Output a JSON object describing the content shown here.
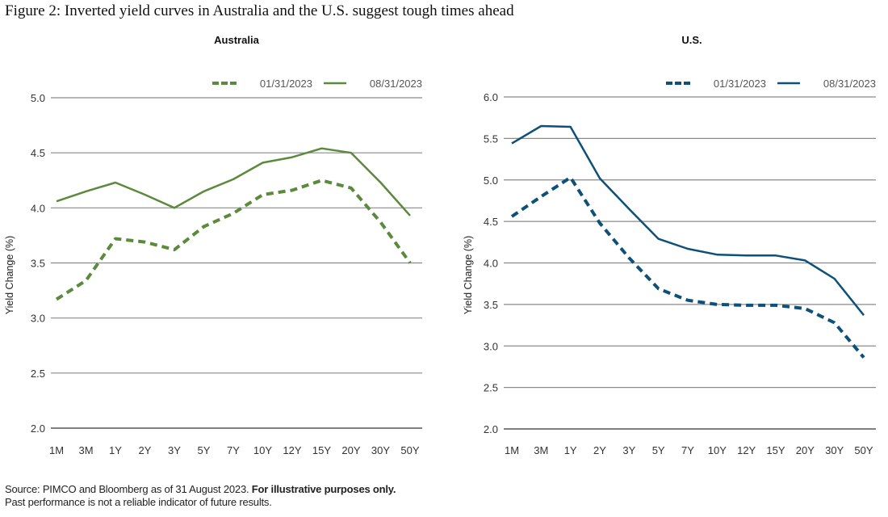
{
  "title": "Figure 2: Inverted yield curves in Australia and the U.S. suggest tough times ahead",
  "footer": {
    "source": "Source: PIMCO and Bloomberg as of 31 August 2023. ",
    "source_bold": "For illustrative purposes only.",
    "disclaimer": "Past performance is not a reliable indicator of future results."
  },
  "chart_data": [
    {
      "type": "line",
      "title": "Australia",
      "xlabel": "",
      "ylabel": "Yield Change (%)",
      "ylim": [
        2.0,
        5.0
      ],
      "yticks": [
        "2.0",
        "2.5",
        "3.0",
        "3.5",
        "4.0",
        "4.5",
        "5.0"
      ],
      "grid": true,
      "legend": "top-right",
      "color": "#5b8a3c",
      "categories": [
        "1M",
        "3M",
        "1Y",
        "2Y",
        "3Y",
        "5Y",
        "7Y",
        "10Y",
        "12Y",
        "15Y",
        "20Y",
        "30Y",
        "50Y"
      ],
      "series": [
        {
          "name": "01/31/2023",
          "style": "dashed",
          "values": [
            3.17,
            3.34,
            3.72,
            3.69,
            3.62,
            3.83,
            3.95,
            4.12,
            4.16,
            4.25,
            4.18,
            3.87,
            3.5
          ]
        },
        {
          "name": "08/31/2023",
          "style": "solid",
          "values": [
            4.06,
            4.15,
            4.23,
            4.12,
            4.0,
            4.15,
            4.26,
            4.41,
            4.46,
            4.54,
            4.5,
            4.23,
            3.93
          ]
        }
      ]
    },
    {
      "type": "line",
      "title": "U.S.",
      "xlabel": "",
      "ylabel": "Yield Change (%)",
      "ylim": [
        2.0,
        6.0
      ],
      "yticks": [
        "2.0",
        "2.5",
        "3.0",
        "3.5",
        "4.0",
        "4.5",
        "5.0",
        "5.5",
        "6.0"
      ],
      "grid": true,
      "legend": "top-right",
      "color": "#0d5079",
      "categories": [
        "1M",
        "3M",
        "1Y",
        "2Y",
        "3Y",
        "5Y",
        "7Y",
        "10Y",
        "12Y",
        "15Y",
        "20Y",
        "30Y",
        "50Y"
      ],
      "series": [
        {
          "name": "01/31/2023",
          "style": "dashed",
          "values": [
            4.56,
            4.8,
            5.03,
            4.48,
            4.06,
            3.69,
            3.55,
            3.5,
            3.49,
            3.49,
            3.45,
            3.28,
            2.86
          ]
        },
        {
          "name": "08/31/2023",
          "style": "solid",
          "values": [
            5.44,
            5.65,
            5.64,
            5.02,
            4.65,
            4.29,
            4.17,
            4.1,
            4.09,
            4.09,
            4.03,
            3.81,
            3.37
          ]
        }
      ]
    }
  ]
}
